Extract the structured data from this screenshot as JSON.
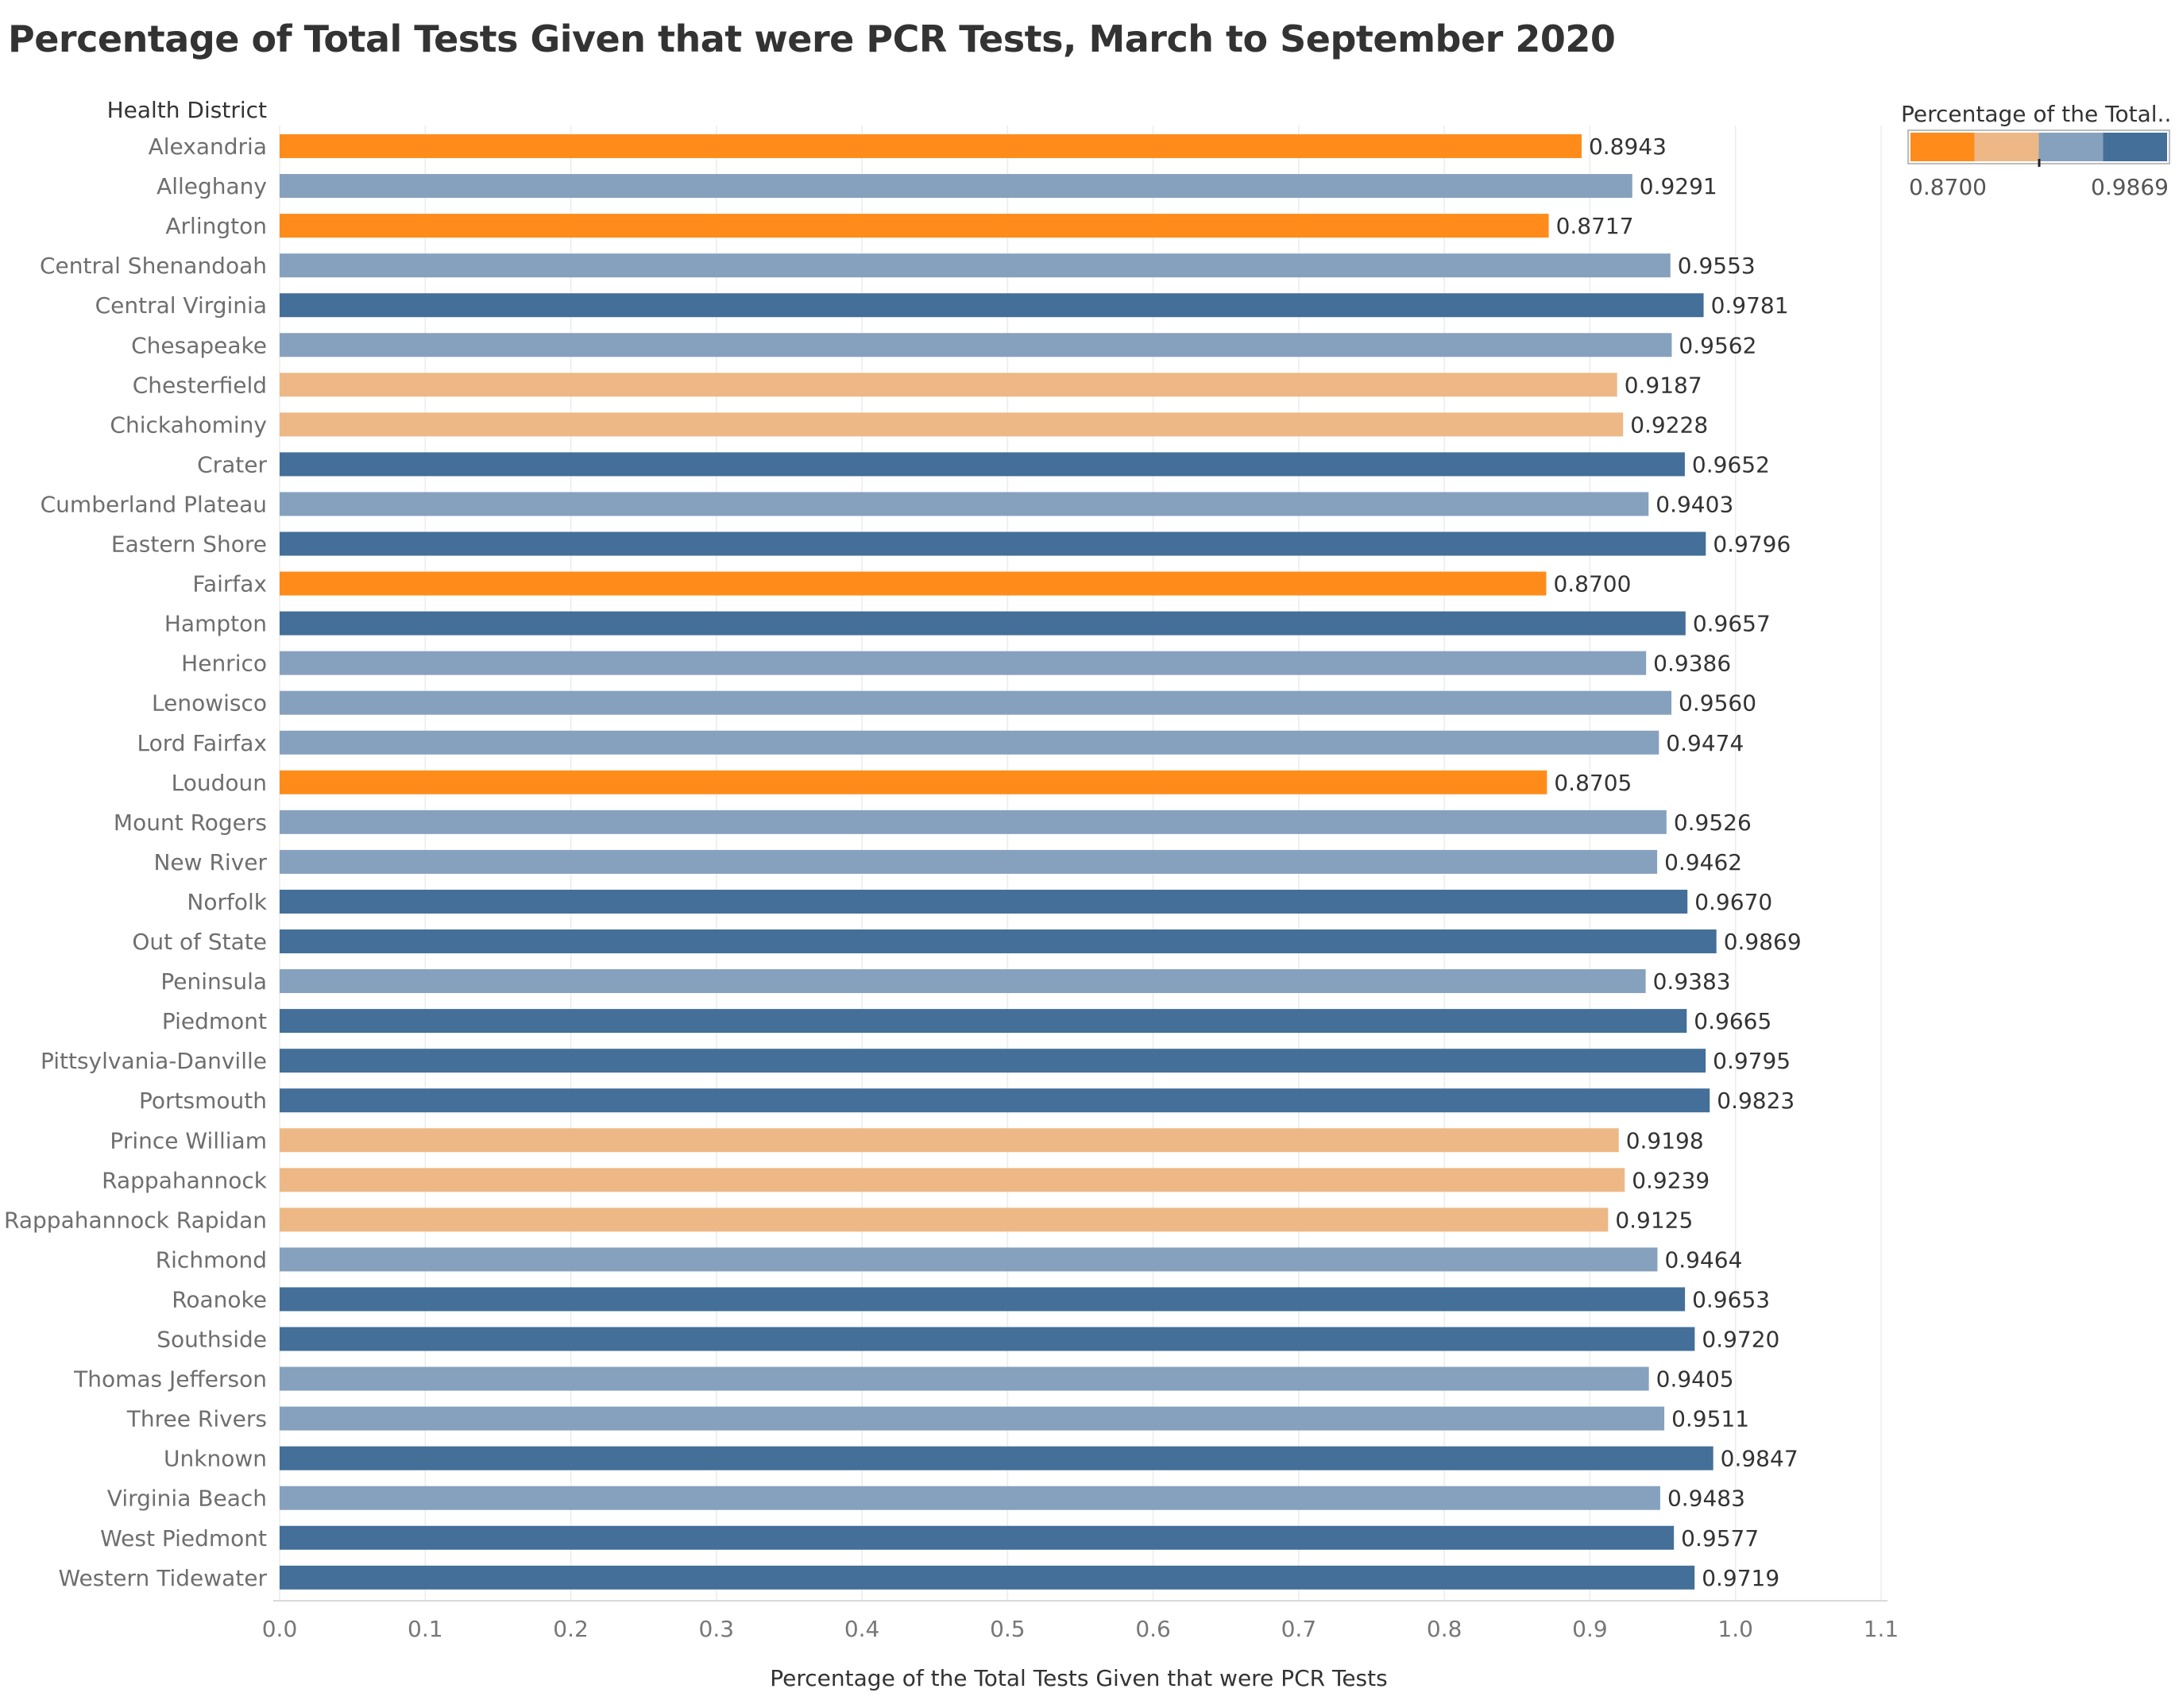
{
  "title": "Percentage of Total Tests Given that were PCR Tests, March to September 2020",
  "colors": {
    "low": "#ff8c1a",
    "mid_low": "#edb886",
    "mid_high": "#86a1be",
    "high": "#436f99",
    "grid": "#ececec",
    "axis": "#d9d9d9"
  },
  "chart_data": {
    "type": "bar",
    "orientation": "horizontal",
    "row_header": "Health District",
    "categories": [
      "Alexandria",
      "Alleghany",
      "Arlington",
      "Central Shenandoah",
      "Central Virginia",
      "Chesapeake",
      "Chesterfield",
      "Chickahominy",
      "Crater",
      "Cumberland Plateau",
      "Eastern Shore",
      "Fairfax",
      "Hampton",
      "Henrico",
      "Lenowisco",
      "Lord Fairfax",
      "Loudoun",
      "Mount Rogers",
      "New River",
      "Norfolk",
      "Out of State",
      "Peninsula",
      "Piedmont",
      "Pittsylvania-Danville",
      "Portsmouth",
      "Prince William",
      "Rappahannock",
      "Rappahannock Rapidan",
      "Richmond",
      "Roanoke",
      "Southside",
      "Thomas Jefferson",
      "Three Rivers",
      "Unknown",
      "Virginia Beach",
      "West Piedmont",
      "Western Tidewater"
    ],
    "values": [
      0.8943,
      0.9291,
      0.8717,
      0.9553,
      0.9781,
      0.9562,
      0.9187,
      0.9228,
      0.9652,
      0.9403,
      0.9796,
      0.87,
      0.9657,
      0.9386,
      0.956,
      0.9474,
      0.8705,
      0.9526,
      0.9462,
      0.967,
      0.9869,
      0.9383,
      0.9665,
      0.9795,
      0.9823,
      0.9198,
      0.9239,
      0.9125,
      0.9464,
      0.9653,
      0.972,
      0.9405,
      0.9511,
      0.9847,
      0.9483,
      0.9577,
      0.9719
    ],
    "value_labels": [
      "0.8943",
      "0.9291",
      "0.8717",
      "0.9553",
      "0.9781",
      "0.9562",
      "0.9187",
      "0.9228",
      "0.9652",
      "0.9403",
      "0.9796",
      "0.8700",
      "0.9657",
      "0.9386",
      "0.9560",
      "0.9474",
      "0.8705",
      "0.9526",
      "0.9462",
      "0.9670",
      "0.9869",
      "0.9383",
      "0.9665",
      "0.9795",
      "0.9823",
      "0.9198",
      "0.9239",
      "0.9125",
      "0.9464",
      "0.9653",
      "0.9720",
      "0.9405",
      "0.9511",
      "0.9847",
      "0.9483",
      "0.9577",
      "0.9719"
    ],
    "xlabel": "Percentage of the Total Tests Given that were PCR Tests",
    "xlim": [
      0,
      1.1
    ],
    "xticks": [
      0.0,
      0.1,
      0.2,
      0.3,
      0.4,
      0.5,
      0.6,
      0.7,
      0.8,
      0.9,
      1.0,
      1.1
    ],
    "xtick_labels": [
      "0.0",
      "0.1",
      "0.2",
      "0.3",
      "0.4",
      "0.5",
      "0.6",
      "0.7",
      "0.8",
      "0.9",
      "1.0",
      "1.1"
    ],
    "grid": true,
    "legend": {
      "title": "Percentage of the Total..",
      "type": "stepped color",
      "min_label": "0.8700",
      "max_label": "0.9869",
      "min": 0.87,
      "max": 0.9869,
      "steps": 4,
      "placement": "top-right"
    }
  }
}
